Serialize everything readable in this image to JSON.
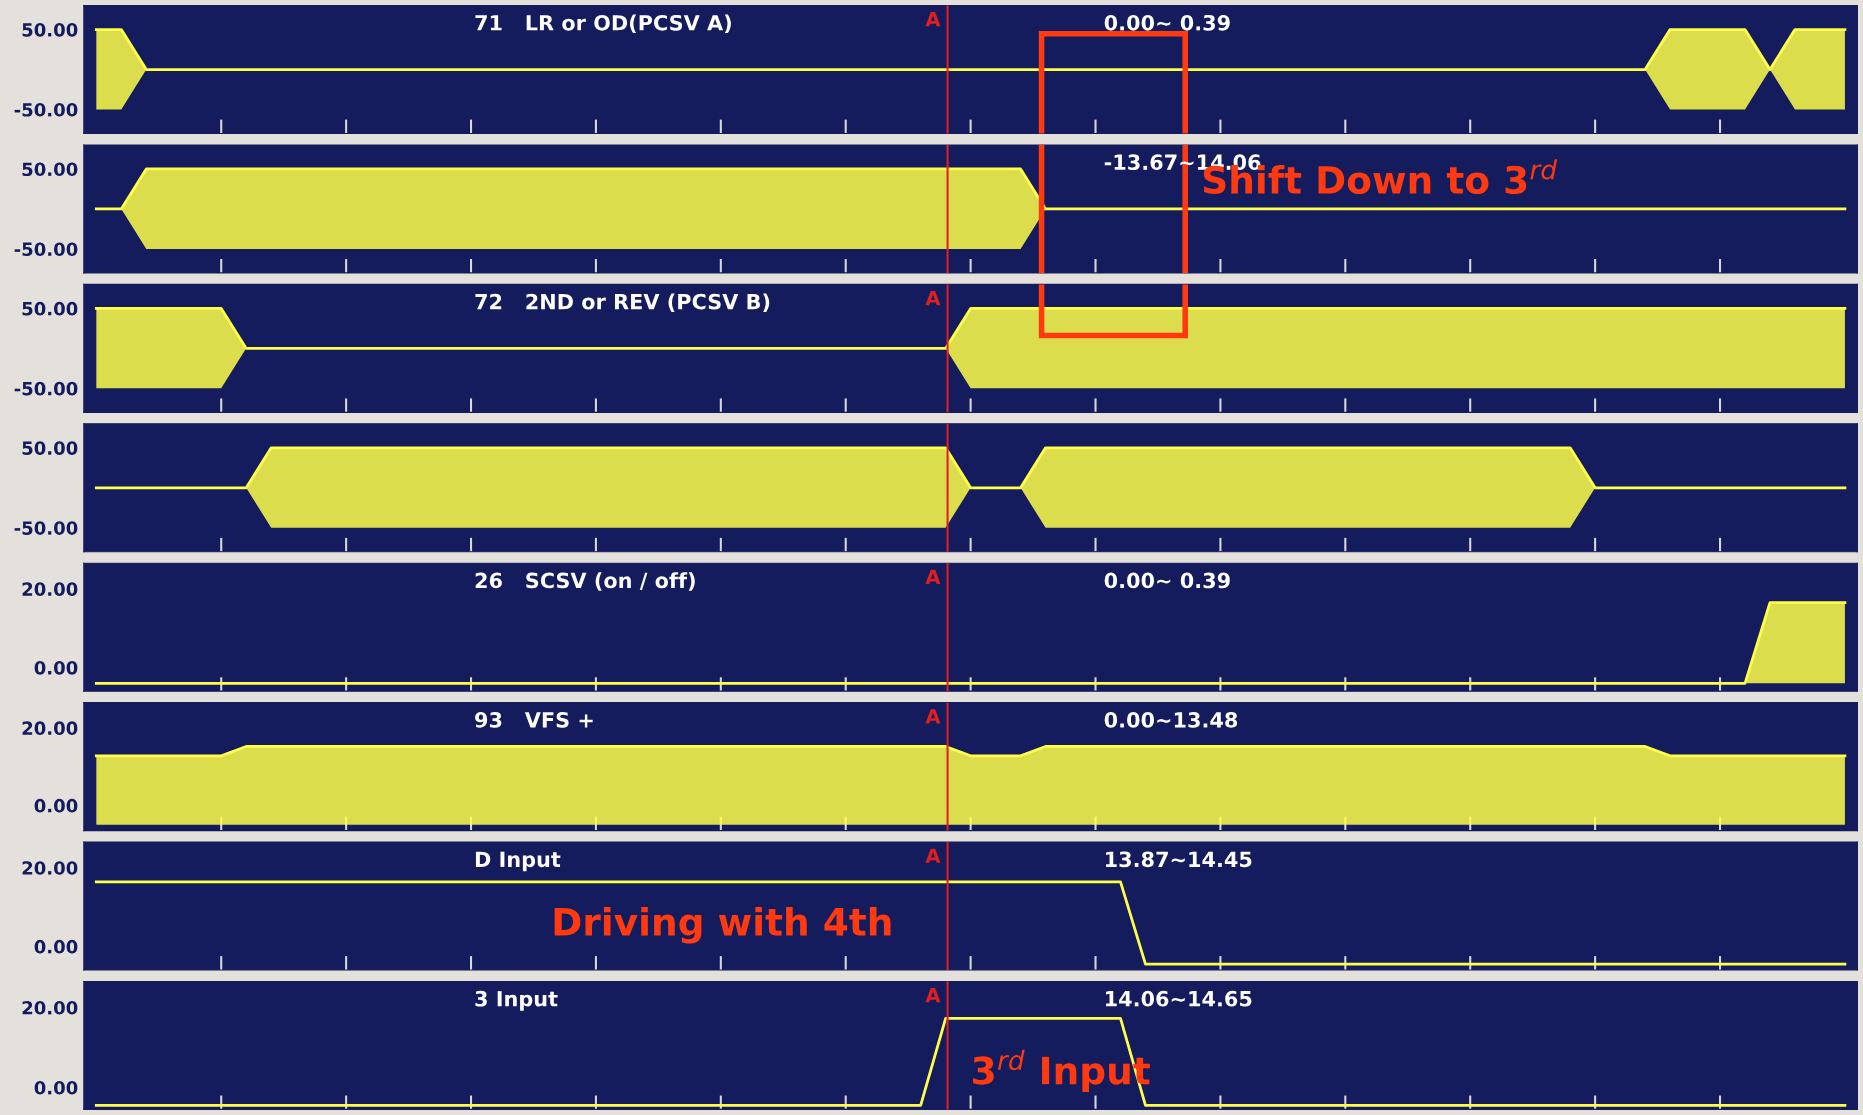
{
  "chart_data": [
    {
      "type": "line",
      "title": "71   LR or OD(PCSV A)",
      "subtitle": "0.00∼ 0.39",
      "annotations": [
        "A"
      ],
      "categories": [
        null,
        null,
        null,
        null,
        null,
        null,
        null,
        null,
        null,
        null,
        null,
        null,
        null,
        null,
        null,
        null,
        null,
        null,
        null,
        null,
        null,
        null,
        null,
        null,
        null,
        null,
        null,
        null,
        null,
        null,
        null,
        null,
        null,
        null,
        null,
        null,
        null,
        null,
        null,
        null,
        null,
        null,
        null,
        null,
        null,
        null,
        null,
        null,
        null,
        null,
        null,
        null,
        null,
        null,
        null,
        null,
        null,
        null,
        null,
        null,
        null,
        null,
        null,
        null,
        null,
        null,
        null,
        null,
        null,
        null,
        null
      ],
      "series": [
        {
          "color": "#ffff4a",
          "values": [
            50,
            50,
            0,
            0,
            0,
            0,
            0,
            0,
            0,
            0,
            0,
            0,
            0,
            0,
            0,
            0,
            0,
            0,
            0,
            0,
            0,
            0,
            0,
            0,
            0,
            0,
            0,
            0,
            0,
            0,
            0,
            0,
            0,
            0,
            0,
            0,
            0,
            0,
            0,
            0,
            0,
            0,
            0,
            0,
            0,
            0,
            0,
            0,
            0,
            0,
            0,
            0,
            0,
            0,
            0,
            0,
            0,
            0,
            0,
            0,
            0,
            0,
            0,
            50,
            50,
            50,
            50,
            0,
            50,
            50,
            50
          ],
          "upper": [
            50,
            50,
            0,
            0,
            0,
            0,
            0,
            0,
            0,
            0,
            0,
            0,
            0,
            0,
            0,
            0,
            0,
            0,
            0,
            0,
            0,
            0,
            0,
            0,
            0,
            0,
            0,
            0,
            0,
            0,
            0,
            0,
            0,
            0,
            0,
            0,
            0,
            0,
            0,
            0,
            0,
            0,
            0,
            0,
            0,
            0,
            0,
            0,
            0,
            0,
            0,
            0,
            0,
            0,
            0,
            0,
            0,
            0,
            0,
            0,
            0,
            0,
            0,
            50,
            50,
            50,
            50,
            0,
            50,
            50,
            50
          ],
          "lower": [
            -50,
            -50,
            0,
            0,
            0,
            0,
            0,
            0,
            0,
            0,
            0,
            0,
            0,
            0,
            0,
            0,
            0,
            0,
            0,
            0,
            0,
            0,
            0,
            0,
            0,
            0,
            0,
            0,
            0,
            0,
            0,
            0,
            0,
            0,
            0,
            0,
            0,
            0,
            0,
            0,
            0,
            0,
            0,
            0,
            0,
            0,
            0,
            0,
            0,
            0,
            0,
            0,
            0,
            0,
            0,
            0,
            0,
            0,
            0,
            0,
            0,
            0,
            0,
            -50,
            -50,
            -50,
            -50,
            0,
            -50,
            -50,
            -50
          ]
        }
      ],
      "ylim": [
        -80,
        80
      ],
      "yticks": [
        {
          "value": -50,
          "label": "-50.00"
        },
        {
          "value": 50,
          "label": "50.00"
        }
      ],
      "tick_labels": "y"
    },
    {
      "type": "line",
      "subtitle": "-13.67∼14.06",
      "annotations": [
        "Shift Down to 3$^{rd}$"
      ],
      "categories": [
        null,
        null,
        null,
        null,
        null,
        null,
        null,
        null,
        null,
        null,
        null,
        null,
        null,
        null,
        null,
        null,
        null,
        null,
        null,
        null,
        null,
        null,
        null,
        null,
        null,
        null,
        null,
        null,
        null,
        null,
        null,
        null,
        null,
        null,
        null,
        null,
        null,
        null,
        null,
        null,
        null,
        null,
        null,
        null,
        null,
        null,
        null,
        null,
        null,
        null,
        null,
        null,
        null,
        null,
        null,
        null,
        null,
        null,
        null,
        null,
        null,
        null,
        null,
        null,
        null,
        null,
        null,
        null,
        null,
        null,
        null
      ],
      "series": [
        {
          "color": "#ffff4a",
          "values": [
            0,
            0,
            50,
            50,
            50,
            50,
            50,
            50,
            50,
            50,
            50,
            50,
            50,
            50,
            50,
            50,
            50,
            50,
            50,
            50,
            50,
            50,
            50,
            50,
            50,
            50,
            50,
            50,
            50,
            50,
            50,
            50,
            50,
            50,
            50,
            50,
            50,
            50,
            0,
            0,
            0,
            0,
            0,
            0,
            0,
            0,
            0,
            0,
            0,
            0,
            0,
            0,
            0,
            0,
            0,
            0,
            0,
            0,
            0,
            0,
            0,
            0,
            0,
            0,
            0,
            0,
            0,
            0,
            0,
            0,
            0
          ],
          "upper": [
            0,
            0,
            50,
            50,
            50,
            50,
            50,
            50,
            50,
            50,
            50,
            50,
            50,
            50,
            50,
            50,
            50,
            50,
            50,
            50,
            50,
            50,
            50,
            50,
            50,
            50,
            50,
            50,
            50,
            50,
            50,
            50,
            50,
            50,
            50,
            50,
            50,
            50,
            0,
            0,
            0,
            0,
            0,
            0,
            0,
            0,
            0,
            0,
            0,
            0,
            0,
            0,
            0,
            0,
            0,
            0,
            0,
            0,
            0,
            0,
            0,
            0,
            0,
            0,
            0,
            0,
            0,
            0,
            0,
            0,
            0
          ],
          "lower": [
            0,
            0,
            -50,
            -50,
            -50,
            -50,
            -50,
            -50,
            -50,
            -50,
            -50,
            -50,
            -50,
            -50,
            -50,
            -50,
            -50,
            -50,
            -50,
            -50,
            -50,
            -50,
            -50,
            -50,
            -50,
            -50,
            -50,
            -50,
            -50,
            -50,
            -50,
            -50,
            -50,
            -50,
            -50,
            -50,
            -50,
            -50,
            0,
            0,
            0,
            0,
            0,
            0,
            0,
            0,
            0,
            0,
            0,
            0,
            0,
            0,
            0,
            0,
            0,
            0,
            0,
            0,
            0,
            0,
            0,
            0,
            0,
            0,
            0,
            0,
            0,
            0,
            0,
            0,
            0
          ]
        }
      ],
      "ylim": [
        -80,
        80
      ],
      "yticks": [
        {
          "value": -50,
          "label": "-50.00"
        },
        {
          "value": 50,
          "label": "50.00"
        }
      ],
      "tick_labels": "y"
    },
    {
      "type": "line",
      "title": "72   2ND or REV (PCSV B)",
      "annotations": [
        "A"
      ],
      "categories": [
        null,
        null,
        null,
        null,
        null,
        null,
        null,
        null,
        null,
        null,
        null,
        null,
        null,
        null,
        null,
        null,
        null,
        null,
        null,
        null,
        null,
        null,
        null,
        null,
        null,
        null,
        null,
        null,
        null,
        null,
        null,
        null,
        null,
        null,
        null,
        null,
        null,
        null,
        null,
        null,
        null,
        null,
        null,
        null,
        null,
        null,
        null,
        null,
        null,
        null,
        null,
        null,
        null,
        null,
        null,
        null,
        null,
        null,
        null,
        null,
        null,
        null,
        null,
        null,
        null,
        null,
        null,
        null,
        null,
        null,
        null
      ],
      "series": [
        {
          "color": "#ffff4a",
          "values": [
            50,
            50,
            50,
            50,
            50,
            50,
            0,
            0,
            0,
            0,
            0,
            0,
            0,
            0,
            0,
            0,
            0,
            0,
            0,
            0,
            0,
            0,
            0,
            0,
            0,
            0,
            0,
            0,
            0,
            0,
            0,
            0,
            0,
            0,
            0,
            50,
            50,
            50,
            50,
            50,
            50,
            50,
            50,
            50,
            50,
            50,
            50,
            50,
            50,
            50,
            50,
            50,
            50,
            50,
            50,
            50,
            50,
            50,
            50,
            50,
            50,
            50,
            50,
            50,
            50,
            50,
            50,
            50,
            50,
            50,
            50
          ],
          "upper": [
            50,
            50,
            50,
            50,
            50,
            50,
            0,
            0,
            0,
            0,
            0,
            0,
            0,
            0,
            0,
            0,
            0,
            0,
            0,
            0,
            0,
            0,
            0,
            0,
            0,
            0,
            0,
            0,
            0,
            0,
            0,
            0,
            0,
            0,
            0,
            50,
            50,
            50,
            50,
            50,
            50,
            50,
            50,
            50,
            50,
            50,
            50,
            50,
            50,
            50,
            50,
            50,
            50,
            50,
            50,
            50,
            50,
            50,
            50,
            50,
            50,
            50,
            50,
            50,
            50,
            50,
            50,
            50,
            50,
            50,
            50
          ],
          "lower": [
            -50,
            -50,
            -50,
            -50,
            -50,
            -50,
            0,
            0,
            0,
            0,
            0,
            0,
            0,
            0,
            0,
            0,
            0,
            0,
            0,
            0,
            0,
            0,
            0,
            0,
            0,
            0,
            0,
            0,
            0,
            0,
            0,
            0,
            0,
            0,
            0,
            -50,
            -50,
            -50,
            -50,
            -50,
            -50,
            -50,
            -50,
            -50,
            -50,
            -50,
            -50,
            -50,
            -50,
            -50,
            -50,
            -50,
            -50,
            -50,
            -50,
            -50,
            -50,
            -50,
            -50,
            -50,
            -50,
            -50,
            -50,
            -50,
            -50,
            -50,
            -50,
            -50,
            -50,
            -50,
            -50
          ]
        }
      ],
      "ylim": [
        -80,
        80
      ],
      "yticks": [
        {
          "value": -50,
          "label": "-50.00"
        },
        {
          "value": 50,
          "label": "50.00"
        }
      ],
      "tick_labels": "y"
    },
    {
      "type": "line",
      "categories": [
        null,
        null,
        null,
        null,
        null,
        null,
        null,
        null,
        null,
        null,
        null,
        null,
        null,
        null,
        null,
        null,
        null,
        null,
        null,
        null,
        null,
        null,
        null,
        null,
        null,
        null,
        null,
        null,
        null,
        null,
        null,
        null,
        null,
        null,
        null,
        null,
        null,
        null,
        null,
        null,
        null,
        null,
        null,
        null,
        null,
        null,
        null,
        null,
        null,
        null,
        null,
        null,
        null,
        null,
        null,
        null,
        null,
        null,
        null,
        null,
        null,
        null,
        null,
        null,
        null,
        null,
        null,
        null,
        null,
        null,
        null
      ],
      "series": [
        {
          "color": "#ffff4a",
          "values": [
            0,
            0,
            0,
            0,
            0,
            0,
            0,
            50,
            50,
            50,
            50,
            50,
            50,
            50,
            50,
            50,
            50,
            50,
            50,
            50,
            50,
            50,
            50,
            50,
            50,
            50,
            50,
            50,
            50,
            50,
            50,
            50,
            50,
            50,
            50,
            0,
            0,
            0,
            50,
            50,
            50,
            50,
            50,
            50,
            50,
            50,
            50,
            50,
            50,
            50,
            50,
            50,
            50,
            50,
            50,
            50,
            50,
            50,
            50,
            50,
            0,
            0,
            0,
            0,
            0,
            0,
            0,
            0,
            0,
            0,
            0
          ],
          "upper": [
            0,
            0,
            0,
            0,
            0,
            0,
            0,
            50,
            50,
            50,
            50,
            50,
            50,
            50,
            50,
            50,
            50,
            50,
            50,
            50,
            50,
            50,
            50,
            50,
            50,
            50,
            50,
            50,
            50,
            50,
            50,
            50,
            50,
            50,
            50,
            0,
            0,
            0,
            50,
            50,
            50,
            50,
            50,
            50,
            50,
            50,
            50,
            50,
            50,
            50,
            50,
            50,
            50,
            50,
            50,
            50,
            50,
            50,
            50,
            50,
            0,
            0,
            0,
            0,
            0,
            0,
            0,
            0,
            0,
            0,
            0
          ],
          "lower": [
            0,
            0,
            0,
            0,
            0,
            0,
            0,
            -50,
            -50,
            -50,
            -50,
            -50,
            -50,
            -50,
            -50,
            -50,
            -50,
            -50,
            -50,
            -50,
            -50,
            -50,
            -50,
            -50,
            -50,
            -50,
            -50,
            -50,
            -50,
            -50,
            -50,
            -50,
            -50,
            -50,
            -50,
            0,
            0,
            0,
            -50,
            -50,
            -50,
            -50,
            -50,
            -50,
            -50,
            -50,
            -50,
            -50,
            -50,
            -50,
            -50,
            -50,
            -50,
            -50,
            -50,
            -50,
            -50,
            -50,
            -50,
            -50,
            0,
            0,
            0,
            0,
            0,
            0,
            0,
            0,
            0,
            0,
            0
          ]
        }
      ],
      "ylim": [
        -80,
        80
      ],
      "yticks": [
        {
          "value": -50,
          "label": "-50.00"
        },
        {
          "value": 50,
          "label": "50.00"
        }
      ],
      "tick_labels": "y"
    },
    {
      "type": "line",
      "title": "26   SCSV (on / off)",
      "subtitle": "0.00∼ 0.39",
      "annotations": [
        "A"
      ],
      "categories": [
        null,
        null,
        null,
        null,
        null,
        null,
        null,
        null,
        null,
        null,
        null,
        null,
        null,
        null,
        null,
        null,
        null,
        null,
        null,
        null,
        null,
        null,
        null,
        null,
        null,
        null,
        null,
        null,
        null,
        null,
        null,
        null,
        null,
        null,
        null,
        null,
        null,
        null,
        null,
        null,
        null,
        null,
        null,
        null,
        null,
        null,
        null,
        null,
        null,
        null,
        null,
        null,
        null,
        null,
        null,
        null,
        null,
        null,
        null,
        null,
        null,
        null,
        null,
        null,
        null,
        null,
        null,
        null,
        null,
        null,
        null
      ],
      "series": [
        {
          "color": "#ffff4a",
          "values": [
            -4,
            -4,
            -4,
            -4,
            -4,
            -4,
            -4,
            -4,
            -4,
            -4,
            -4,
            -4,
            -4,
            -4,
            -4,
            -4,
            -4,
            -4,
            -4,
            -4,
            -4,
            -4,
            -4,
            -4,
            -4,
            -4,
            -4,
            -4,
            -4,
            -4,
            -4,
            -4,
            -4,
            -4,
            -4,
            -4,
            -4,
            -4,
            -4,
            -4,
            -4,
            -4,
            -4,
            -4,
            -4,
            -4,
            -4,
            -4,
            -4,
            -4,
            -4,
            -4,
            -4,
            -4,
            -4,
            -4,
            -4,
            -4,
            -4,
            -4,
            -4,
            -4,
            -4,
            -4,
            -4,
            -4,
            -4,
            16.5,
            16.5,
            16.5,
            16.5
          ],
          "upper": [
            -4,
            -4,
            -4,
            -4,
            -4,
            -4,
            -4,
            -4,
            -4,
            -4,
            -4,
            -4,
            -4,
            -4,
            -4,
            -4,
            -4,
            -4,
            -4,
            -4,
            -4,
            -4,
            -4,
            -4,
            -4,
            -4,
            -4,
            -4,
            -4,
            -4,
            -4,
            -4,
            -4,
            -4,
            -4,
            -4,
            -4,
            -4,
            -4,
            -4,
            -4,
            -4,
            -4,
            -4,
            -4,
            -4,
            -4,
            -4,
            -4,
            -4,
            -4,
            -4,
            -4,
            -4,
            -4,
            -4,
            -4,
            -4,
            -4,
            -4,
            -4,
            -4,
            -4,
            -4,
            -4,
            -4,
            -4,
            16.5,
            16.5,
            16.5,
            16.5
          ],
          "lower": [
            -4,
            -4,
            -4,
            -4,
            -4,
            -4,
            -4,
            -4,
            -4,
            -4,
            -4,
            -4,
            -4,
            -4,
            -4,
            -4,
            -4,
            -4,
            -4,
            -4,
            -4,
            -4,
            -4,
            -4,
            -4,
            -4,
            -4,
            -4,
            -4,
            -4,
            -4,
            -4,
            -4,
            -4,
            -4,
            -4,
            -4,
            -4,
            -4,
            -4,
            -4,
            -4,
            -4,
            -4,
            -4,
            -4,
            -4,
            -4,
            -4,
            -4,
            -4,
            -4,
            -4,
            -4,
            -4,
            -4,
            -4,
            -4,
            -4,
            -4,
            -4,
            -4,
            -4,
            -4,
            -4,
            -4,
            -4,
            -4,
            -4,
            -4,
            -4
          ]
        }
      ],
      "ylim": [
        -6,
        26.5
      ],
      "yticks": [
        {
          "value": 0,
          "label": "0.00"
        },
        {
          "value": 20,
          "label": "20.00"
        }
      ],
      "tick_labels": "y"
    },
    {
      "type": "line",
      "title": "93   VFS +",
      "subtitle": "0.00∼13.48",
      "annotations": [
        "A"
      ],
      "categories": [
        null,
        null,
        null,
        null,
        null,
        null,
        null,
        null,
        null,
        null,
        null,
        null,
        null,
        null,
        null,
        null,
        null,
        null,
        null,
        null,
        null,
        null,
        null,
        null,
        null,
        null,
        null,
        null,
        null,
        null,
        null,
        null,
        null,
        null,
        null,
        null,
        null,
        null,
        null,
        null,
        null,
        null,
        null,
        null,
        null,
        null,
        null,
        null,
        null,
        null,
        null,
        null,
        null,
        null,
        null,
        null,
        null,
        null,
        null,
        null,
        null,
        null,
        null,
        null,
        null,
        null,
        null,
        null,
        null,
        null,
        null
      ],
      "series": [
        {
          "color": "#ffff4a",
          "values": [
            12.8,
            12.8,
            12.8,
            12.8,
            12.8,
            12.8,
            15.2,
            15.2,
            15.2,
            15.2,
            15.2,
            15.2,
            15.2,
            15.2,
            15.2,
            15.2,
            15.2,
            15.2,
            15.2,
            15.2,
            15.2,
            15.2,
            15.2,
            15.2,
            15.2,
            15.2,
            15.2,
            15.2,
            15.2,
            15.2,
            15.2,
            15.2,
            15.2,
            15.2,
            15.2,
            12.8,
            12.8,
            12.8,
            15.2,
            15.2,
            15.2,
            15.2,
            15.2,
            15.2,
            15.2,
            15.2,
            15.2,
            15.2,
            15.2,
            15.2,
            15.2,
            15.2,
            15.2,
            15.2,
            15.2,
            15.2,
            15.2,
            15.2,
            15.2,
            15.2,
            15.2,
            15.2,
            15.2,
            12.8,
            12.8,
            12.8,
            12.8,
            12.8,
            12.8,
            12.8,
            12.8
          ],
          "upper": [
            12.8,
            12.8,
            12.8,
            12.8,
            12.8,
            12.8,
            15.2,
            15.2,
            15.2,
            15.2,
            15.2,
            15.2,
            15.2,
            15.2,
            15.2,
            15.2,
            15.2,
            15.2,
            15.2,
            15.2,
            15.2,
            15.2,
            15.2,
            15.2,
            15.2,
            15.2,
            15.2,
            15.2,
            15.2,
            15.2,
            15.2,
            15.2,
            15.2,
            15.2,
            15.2,
            12.8,
            12.8,
            12.8,
            15.2,
            15.2,
            15.2,
            15.2,
            15.2,
            15.2,
            15.2,
            15.2,
            15.2,
            15.2,
            15.2,
            15.2,
            15.2,
            15.2,
            15.2,
            15.2,
            15.2,
            15.2,
            15.2,
            15.2,
            15.2,
            15.2,
            15.2,
            15.2,
            15.2,
            12.8,
            12.8,
            12.8,
            12.8,
            12.8,
            12.8,
            12.8,
            12.8
          ],
          "lower": [
            -5,
            -5,
            -5,
            -5,
            -5,
            -5,
            -5,
            -5,
            -5,
            -5,
            -5,
            -5,
            -5,
            -5,
            -5,
            -5,
            -5,
            -5,
            -5,
            -5,
            -5,
            -5,
            -5,
            -5,
            -5,
            -5,
            -5,
            -5,
            -5,
            -5,
            -5,
            -5,
            -5,
            -5,
            -5,
            -5,
            -5,
            -5,
            -5,
            -5,
            -5,
            -5,
            -5,
            -5,
            -5,
            -5,
            -5,
            -5,
            -5,
            -5,
            -5,
            -5,
            -5,
            -5,
            -5,
            -5,
            -5,
            -5,
            -5,
            -5,
            -5,
            -5,
            -5,
            -5,
            -5,
            -5,
            -5,
            -5,
            -5,
            -5,
            -5
          ]
        }
      ],
      "ylim": [
        -6.5,
        26.5
      ],
      "yticks": [
        {
          "value": 0,
          "label": "0.00"
        },
        {
          "value": 20,
          "label": "20.00"
        }
      ],
      "tick_labels": "y"
    },
    {
      "type": "line",
      "title": "D Input",
      "subtitle": "13.87∼14.45",
      "annotations": [
        "A",
        "Driving with 4th"
      ],
      "categories": [
        null,
        null,
        null,
        null,
        null,
        null,
        null,
        null,
        null,
        null,
        null,
        null,
        null,
        null,
        null,
        null,
        null,
        null,
        null,
        null,
        null,
        null,
        null,
        null,
        null,
        null,
        null,
        null,
        null,
        null,
        null,
        null,
        null,
        null,
        null,
        null,
        null,
        null,
        null,
        null,
        null,
        null,
        null,
        null,
        null,
        null,
        null,
        null,
        null,
        null,
        null,
        null,
        null,
        null,
        null,
        null,
        null,
        null,
        null,
        null,
        null,
        null,
        null,
        null,
        null,
        null,
        null,
        null,
        null,
        null,
        null
      ],
      "series": [
        {
          "color": "#ffff4a",
          "values": [
            16.4,
            16.4,
            16.4,
            16.4,
            16.4,
            16.4,
            16.4,
            16.4,
            16.4,
            16.4,
            16.4,
            16.4,
            16.4,
            16.4,
            16.4,
            16.4,
            16.4,
            16.4,
            16.4,
            16.4,
            16.4,
            16.4,
            16.4,
            16.4,
            16.4,
            16.4,
            16.4,
            16.4,
            16.4,
            16.4,
            16.4,
            16.4,
            16.4,
            16.4,
            16.4,
            16.4,
            16.4,
            16.4,
            16.4,
            16.4,
            16.4,
            16.4,
            -4.5,
            -4.5,
            -4.5,
            -4.5,
            -4.5,
            -4.5,
            -4.5,
            -4.5,
            -4.5,
            -4.5,
            -4.5,
            -4.5,
            -4.5,
            -4.5,
            -4.5,
            -4.5,
            -4.5,
            -4.5,
            -4.5,
            -4.5,
            -4.5,
            -4.5,
            -4.5,
            -4.5,
            -4.5,
            -4.5,
            -4.5,
            -4.5,
            -4.5
          ]
        }
      ],
      "ylim": [
        -6,
        26.5
      ],
      "yticks": [
        {
          "value": 0,
          "label": "0.00"
        },
        {
          "value": 20,
          "label": "20.00"
        }
      ],
      "tick_labels": "y"
    },
    {
      "type": "line",
      "title": "3 Input",
      "subtitle": "14.06∼14.65",
      "annotations": [
        "A",
        "3$^{rd}$ Input"
      ],
      "categories": [
        null,
        null,
        null,
        null,
        null,
        null,
        null,
        null,
        null,
        null,
        null,
        null,
        null,
        null,
        null,
        null,
        null,
        null,
        null,
        null,
        null,
        null,
        null,
        null,
        null,
        null,
        null,
        null,
        null,
        null,
        null,
        null,
        null,
        null,
        null,
        null,
        null,
        null,
        null,
        null,
        null,
        null,
        null,
        null,
        null,
        null,
        null,
        null,
        null,
        null,
        null,
        null,
        null,
        null,
        null,
        null,
        null,
        null,
        null,
        null,
        null,
        null,
        null,
        null,
        null,
        null,
        null,
        null,
        null,
        null,
        null
      ],
      "series": [
        {
          "color": "#ffff4a",
          "values": [
            -4.5,
            -4.5,
            -4.5,
            -4.5,
            -4.5,
            -4.5,
            -4.5,
            -4.5,
            -4.5,
            -4.5,
            -4.5,
            -4.5,
            -4.5,
            -4.5,
            -4.5,
            -4.5,
            -4.5,
            -4.5,
            -4.5,
            -4.5,
            -4.5,
            -4.5,
            -4.5,
            -4.5,
            -4.5,
            -4.5,
            -4.5,
            -4.5,
            -4.5,
            -4.5,
            -4.5,
            -4.5,
            -4.5,
            -4.5,
            17.3,
            17.3,
            17.3,
            17.3,
            17.3,
            17.3,
            17.3,
            17.3,
            -4.5,
            -4.5,
            -4.5,
            -4.5,
            -4.5,
            -4.5,
            -4.5,
            -4.5,
            -4.5,
            -4.5,
            -4.5,
            -4.5,
            -4.5,
            -4.5,
            -4.5,
            -4.5,
            -4.5,
            -4.5,
            -4.5,
            -4.5,
            -4.5,
            -4.5,
            -4.5,
            -4.5,
            -4.5,
            -4.5,
            -4.5,
            -4.5,
            -4.5
          ]
        }
      ],
      "ylim": [
        -5.5,
        26.5
      ],
      "yticks": [
        {
          "value": 0,
          "label": "0.00"
        },
        {
          "value": 20,
          "label": "20.00"
        }
      ],
      "tick_labels": "y"
    }
  ]
}
